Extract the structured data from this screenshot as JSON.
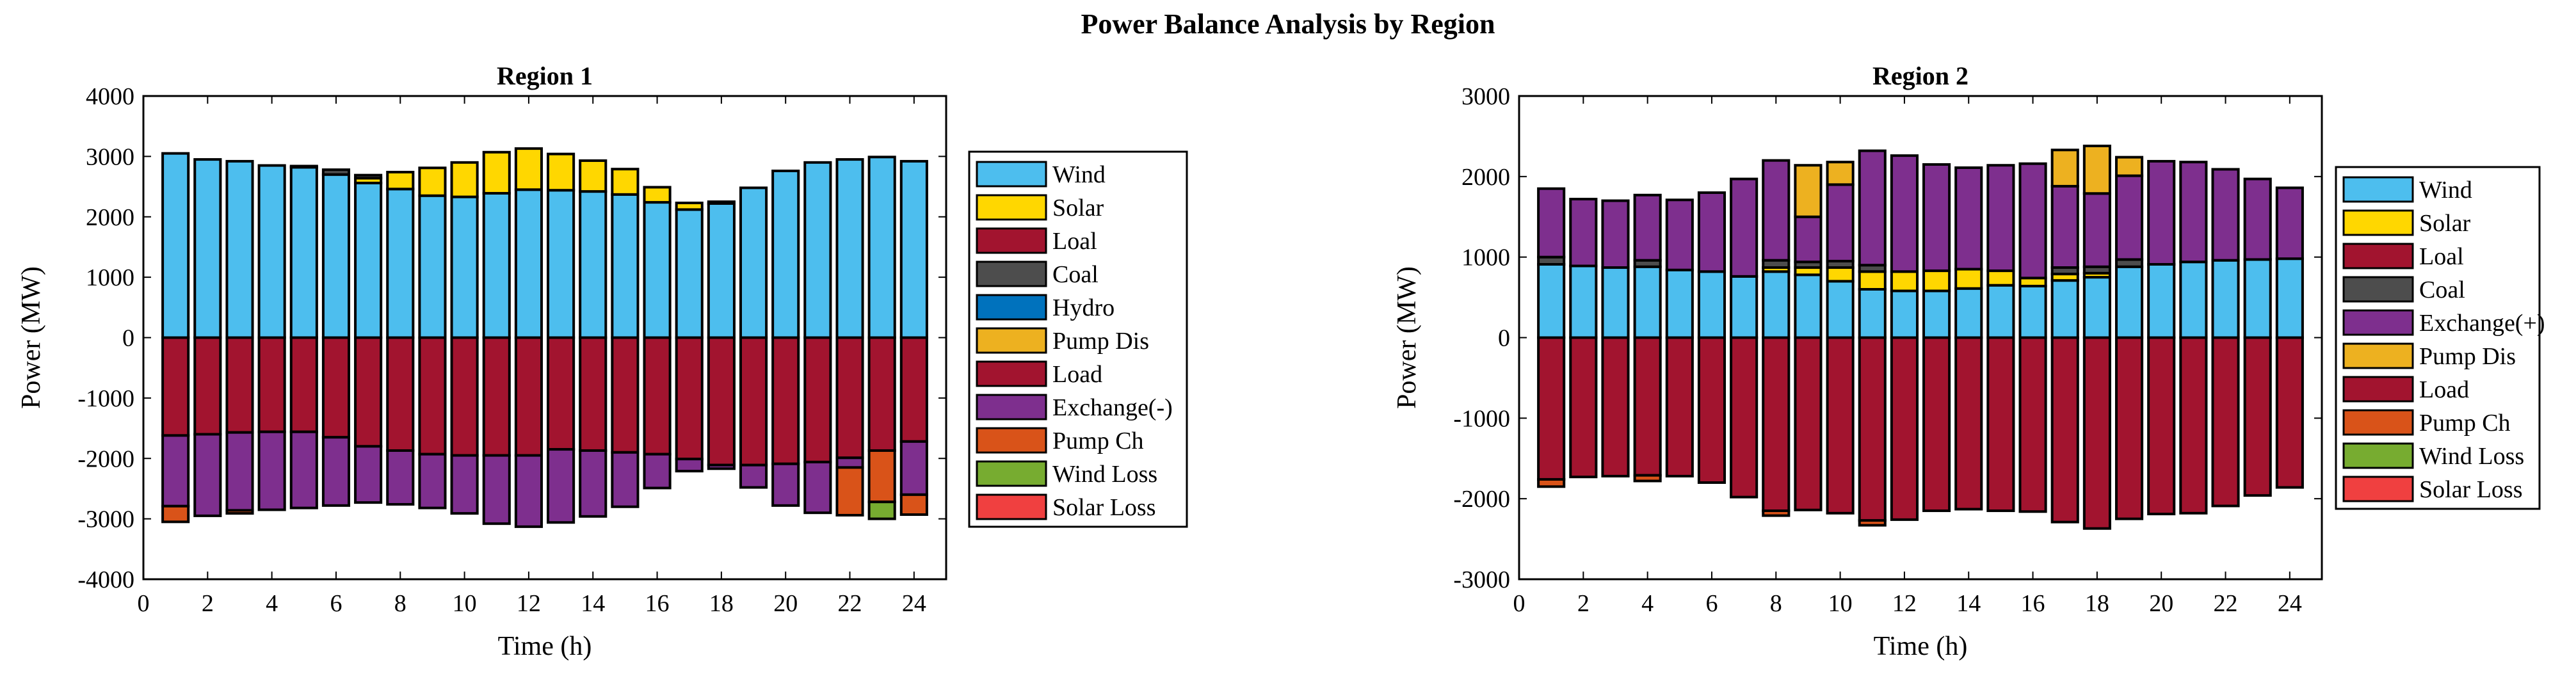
{
  "chart_data": {
    "title": "Power Balance Analysis by Region",
    "charts": [
      {
        "type": "bar",
        "stacked": true,
        "title": "Region 1",
        "xlabel": "Time (h)",
        "ylabel": "Power (MW)",
        "xlim": [
          0,
          25
        ],
        "xticks": [
          0,
          2,
          4,
          6,
          8,
          10,
          12,
          14,
          16,
          18,
          20,
          22,
          24
        ],
        "ylim": [
          -4000,
          4000
        ],
        "yticks": [
          -4000,
          -3000,
          -2000,
          -1000,
          0,
          1000,
          2000,
          3000,
          4000
        ],
        "legend_position": "right",
        "categories": [
          1,
          2,
          3,
          4,
          5,
          6,
          7,
          8,
          9,
          10,
          11,
          12,
          13,
          14,
          15,
          16,
          17,
          18,
          19,
          20,
          21,
          22,
          23,
          24
        ],
        "series": [
          {
            "name": "Wind",
            "color": "#4DBEEE",
            "stack": "positive",
            "values": [
              3050,
              2950,
              2920,
              2850,
              2820,
              2700,
              2560,
              2460,
              2350,
              2330,
              2390,
              2450,
              2440,
              2420,
              2370,
              2240,
              2120,
              2220,
              2480,
              2760,
              2900,
              2950,
              2990,
              2920
            ]
          },
          {
            "name": "Solar",
            "color": "#FFD700",
            "stack": "positive",
            "values": [
              0,
              0,
              0,
              0,
              0,
              0,
              80,
              280,
              460,
              570,
              680,
              680,
              600,
              510,
              420,
              250,
              110,
              30,
              0,
              0,
              0,
              0,
              0,
              0
            ]
          },
          {
            "name": "Loal",
            "color": "#A2142F",
            "stack": "positive",
            "values": [
              0,
              0,
              0,
              0,
              0,
              0,
              0,
              0,
              0,
              0,
              0,
              0,
              0,
              0,
              0,
              0,
              0,
              0,
              0,
              0,
              0,
              0,
              0,
              0
            ]
          },
          {
            "name": "Coal",
            "color": "#4D4D4D",
            "stack": "positive",
            "values": [
              0,
              0,
              0,
              0,
              20,
              80,
              50,
              0,
              0,
              0,
              0,
              0,
              0,
              0,
              0,
              0,
              0,
              0,
              0,
              0,
              0,
              0,
              0,
              0
            ]
          },
          {
            "name": "Hydro",
            "color": "#0072BD",
            "stack": "positive",
            "values": [
              0,
              0,
              0,
              0,
              0,
              0,
              0,
              0,
              0,
              0,
              0,
              0,
              0,
              0,
              0,
              0,
              0,
              0,
              0,
              0,
              0,
              0,
              0,
              0
            ]
          },
          {
            "name": "Pump Dis",
            "color": "#EDB120",
            "stack": "positive",
            "values": [
              0,
              0,
              0,
              0,
              0,
              0,
              0,
              0,
              0,
              0,
              0,
              0,
              0,
              0,
              0,
              0,
              0,
              0,
              0,
              0,
              0,
              0,
              0,
              0
            ]
          },
          {
            "name": "Load",
            "color": "#A2142F",
            "stack": "negative",
            "values": [
              -1620,
              -1600,
              -1570,
              -1560,
              -1560,
              -1650,
              -1800,
              -1870,
              -1930,
              -1950,
              -1950,
              -1950,
              -1850,
              -1870,
              -1900,
              -1930,
              -2010,
              -2110,
              -2110,
              -2090,
              -2060,
              -1990,
              -1870,
              -1720
            ]
          },
          {
            "name": "Exchange(-)",
            "color": "#7E2F8E",
            "stack": "negative",
            "values": [
              -1170,
              -1350,
              -1290,
              -1290,
              -1260,
              -1130,
              -930,
              -890,
              -890,
              -960,
              -1130,
              -1180,
              -1210,
              -1090,
              -900,
              -560,
              -200,
              -60,
              -370,
              -690,
              -840,
              -160,
              0,
              -880
            ]
          },
          {
            "name": "Pump Ch",
            "color": "#D95319",
            "stack": "negative",
            "values": [
              -260,
              0,
              -50,
              0,
              0,
              0,
              0,
              0,
              0,
              0,
              0,
              0,
              0,
              0,
              0,
              0,
              0,
              0,
              0,
              0,
              0,
              -790,
              -850,
              -330
            ]
          },
          {
            "name": "Wind Loss",
            "color": "#77AC30",
            "stack": "negative",
            "values": [
              0,
              0,
              0,
              0,
              0,
              0,
              0,
              0,
              0,
              0,
              0,
              0,
              0,
              0,
              0,
              0,
              0,
              0,
              0,
              0,
              0,
              0,
              -280,
              0
            ]
          },
          {
            "name": "Solar Loss",
            "color": "#F04040",
            "stack": "negative",
            "values": [
              0,
              0,
              0,
              0,
              0,
              0,
              0,
              0,
              0,
              0,
              0,
              0,
              0,
              0,
              0,
              0,
              0,
              0,
              0,
              0,
              0,
              0,
              0,
              0
            ]
          }
        ]
      },
      {
        "type": "bar",
        "stacked": true,
        "title": "Region 2",
        "xlabel": "Time (h)",
        "ylabel": "Power (MW)",
        "xlim": [
          0,
          25
        ],
        "xticks": [
          0,
          2,
          4,
          6,
          8,
          10,
          12,
          14,
          16,
          18,
          20,
          22,
          24
        ],
        "ylim": [
          -3000,
          3000
        ],
        "yticks": [
          -3000,
          -2000,
          -1000,
          0,
          1000,
          2000,
          3000
        ],
        "legend_position": "right",
        "categories": [
          1,
          2,
          3,
          4,
          5,
          6,
          7,
          8,
          9,
          10,
          11,
          12,
          13,
          14,
          15,
          16,
          17,
          18,
          19,
          20,
          21,
          22,
          23,
          24
        ],
        "series": [
          {
            "name": "Wind",
            "color": "#4DBEEE",
            "stack": "positive",
            "values": [
              910,
              890,
              870,
              880,
              840,
              820,
              760,
              820,
              780,
              700,
              600,
              580,
              580,
              610,
              650,
              640,
              710,
              750,
              880,
              910,
              940,
              960,
              970,
              980
            ]
          },
          {
            "name": "Solar",
            "color": "#FFD700",
            "stack": "positive",
            "values": [
              0,
              0,
              0,
              0,
              0,
              0,
              0,
              50,
              90,
              170,
              220,
              240,
              250,
              240,
              180,
              100,
              80,
              50,
              0,
              0,
              0,
              0,
              0,
              0
            ]
          },
          {
            "name": "Loal",
            "color": "#A2142F",
            "stack": "positive",
            "values": [
              0,
              0,
              0,
              0,
              0,
              0,
              0,
              0,
              0,
              0,
              0,
              0,
              0,
              0,
              0,
              0,
              0,
              0,
              0,
              0,
              0,
              0,
              0,
              0
            ]
          },
          {
            "name": "Coal",
            "color": "#4D4D4D",
            "stack": "positive",
            "values": [
              90,
              0,
              0,
              80,
              0,
              0,
              0,
              90,
              70,
              80,
              80,
              0,
              0,
              0,
              0,
              0,
              80,
              80,
              90,
              0,
              0,
              0,
              0,
              0
            ]
          },
          {
            "name": "Exchange(+)",
            "color": "#7E2F8E",
            "stack": "positive",
            "values": [
              850,
              830,
              830,
              810,
              870,
              980,
              1210,
              1240,
              560,
              950,
              1420,
              1440,
              1320,
              1260,
              1310,
              1420,
              1010,
              910,
              1040,
              1280,
              1240,
              1130,
              1000,
              880
            ]
          },
          {
            "name": "Pump Dis",
            "color": "#EDB120",
            "stack": "positive",
            "values": [
              0,
              0,
              0,
              0,
              0,
              0,
              0,
              0,
              640,
              280,
              0,
              0,
              0,
              0,
              0,
              0,
              450,
              590,
              230,
              0,
              0,
              0,
              0,
              0
            ]
          },
          {
            "name": "Load",
            "color": "#A2142F",
            "stack": "negative",
            "values": [
              -1760,
              -1730,
              -1720,
              -1710,
              -1720,
              -1800,
              -1980,
              -2150,
              -2140,
              -2180,
              -2270,
              -2260,
              -2150,
              -2130,
              -2150,
              -2160,
              -2290,
              -2370,
              -2250,
              -2190,
              -2180,
              -2090,
              -1960,
              -1860
            ]
          },
          {
            "name": "Pump Ch",
            "color": "#D95319",
            "stack": "negative",
            "values": [
              -90,
              0,
              0,
              -70,
              0,
              0,
              0,
              -60,
              0,
              0,
              -60,
              0,
              0,
              0,
              0,
              0,
              0,
              0,
              0,
              0,
              0,
              0,
              0,
              0
            ]
          },
          {
            "name": "Wind Loss",
            "color": "#77AC30",
            "stack": "negative",
            "values": [
              0,
              0,
              0,
              0,
              0,
              0,
              0,
              0,
              0,
              0,
              0,
              0,
              0,
              0,
              0,
              0,
              0,
              0,
              0,
              0,
              0,
              0,
              0,
              0
            ]
          },
          {
            "name": "Solar Loss",
            "color": "#F04040",
            "stack": "negative",
            "values": [
              0,
              0,
              0,
              0,
              0,
              0,
              0,
              0,
              0,
              0,
              0,
              0,
              0,
              0,
              0,
              0,
              0,
              0,
              0,
              0,
              0,
              0,
              0,
              0
            ]
          }
        ]
      }
    ]
  }
}
